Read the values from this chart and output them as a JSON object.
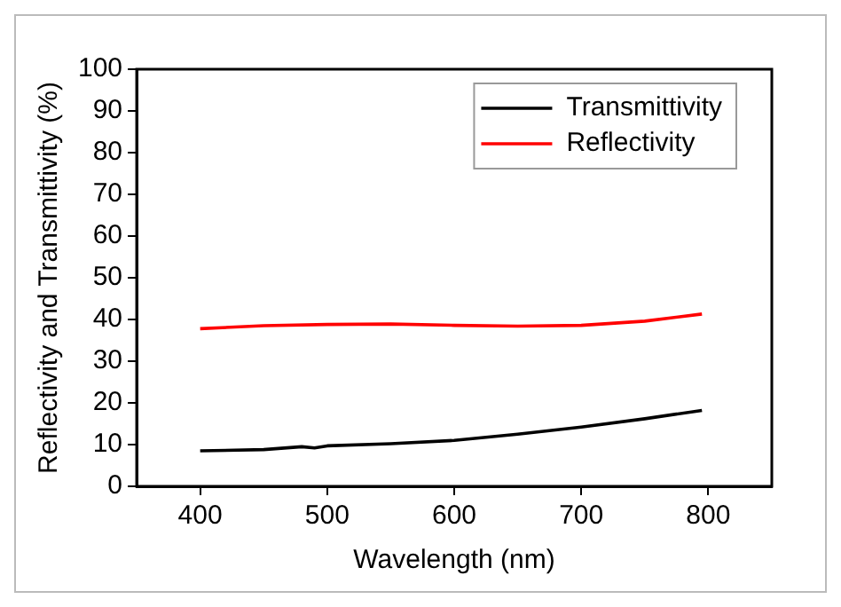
{
  "chart_data": {
    "type": "line",
    "xlabel": "Wavelength (nm)",
    "ylabel": "Reflectivity and Transmittivity (%)",
    "xlim": [
      350,
      850
    ],
    "xticks": [
      400,
      500,
      600,
      700,
      800
    ],
    "ylim": [
      0,
      100
    ],
    "yticks": [
      0,
      10,
      20,
      30,
      40,
      50,
      60,
      70,
      80,
      90,
      100
    ],
    "legend": "top right",
    "grid": false,
    "marker": "none",
    "line_style": "solid",
    "series": [
      {
        "name": "Transmittivity",
        "color": "#000000",
        "x": [
          400,
          450,
          480,
          490,
          500,
          550,
          600,
          650,
          700,
          750,
          795
        ],
        "values": [
          8.5,
          8.8,
          9.5,
          9.2,
          9.7,
          10.2,
          11,
          12.5,
          14.2,
          16.2,
          18.2
        ]
      },
      {
        "name": "Reflectivity",
        "color": "#ff0000",
        "x": [
          400,
          450,
          500,
          550,
          600,
          650,
          700,
          750,
          795
        ],
        "values": [
          37.8,
          38.5,
          38.8,
          38.9,
          38.6,
          38.4,
          38.6,
          39.6,
          41.3
        ]
      }
    ]
  }
}
